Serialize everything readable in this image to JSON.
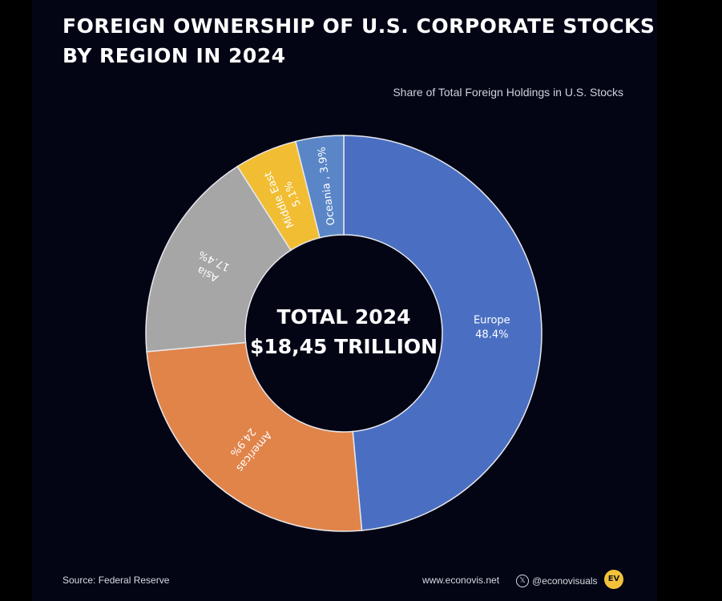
{
  "title_line1": "FOREIGN OWNERSHIP OF U.S. CORPORATE STOCKS",
  "title_line2": "BY REGION IN 2024",
  "subtitle": "Share of Total Foreign Holdings in U.S. Stocks",
  "center_line1": "TOTAL 2024",
  "center_line2": "$18,45 TRILLION",
  "chart_data": {
    "type": "pie",
    "subtype": "donut",
    "unit": "%",
    "slices": [
      {
        "name": "Europe",
        "label": "Europe",
        "value_label": "48.4%",
        "value": 48.4,
        "color": "#4a6fc2"
      },
      {
        "name": "Americas",
        "label": "Americas",
        "value_label": "24.9%",
        "value": 24.9,
        "color": "#e0844a"
      },
      {
        "name": "Asia",
        "label": "Asia",
        "value_label": "17.4%",
        "value": 17.4,
        "color": "#a6a6a6"
      },
      {
        "name": "Middle East",
        "label": "Middle East",
        "value_label": "5.1%",
        "value": 5.1,
        "color": "#f1bd33"
      },
      {
        "name": "Oceania",
        "label": "Oceania , 3.9%",
        "value_label": "",
        "value": 3.9,
        "color": "#5a86c8"
      }
    ]
  },
  "footer": {
    "source": "Source: Federal Reserve",
    "site": "www.econovis.net",
    "social": "@econovisuals",
    "social_icon": "x-icon",
    "logo_text": "EV"
  }
}
